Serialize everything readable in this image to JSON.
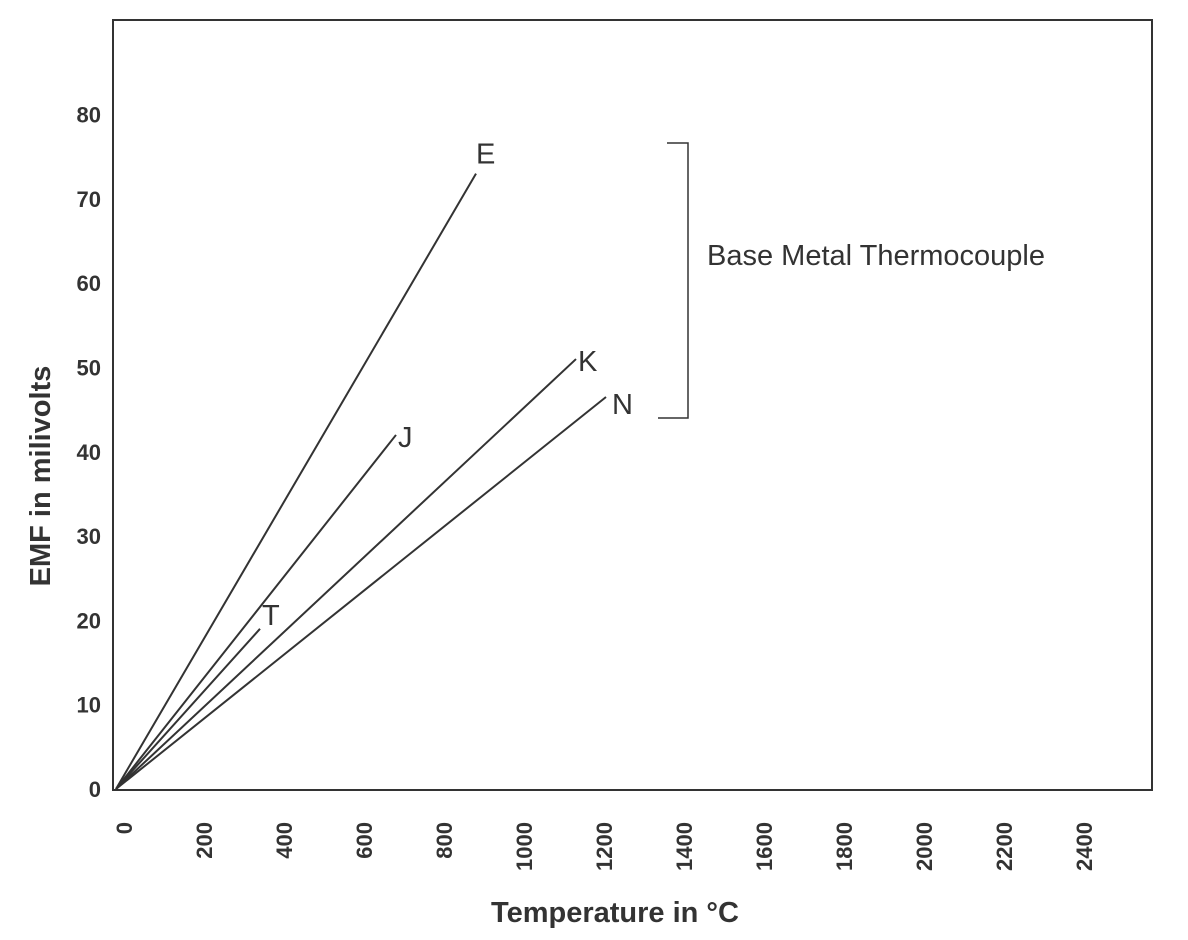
{
  "chart_data": {
    "type": "line",
    "title": "",
    "xlabel": "Temperature in °C",
    "ylabel": "EMF in milivolts",
    "xlim": [
      0,
      2600
    ],
    "ylim": [
      0,
      90
    ],
    "x_ticks": [
      "0",
      "200",
      "400",
      "600",
      "800",
      "1000",
      "1200",
      "1400",
      "1600",
      "1800",
      "2000",
      "2200",
      "2400"
    ],
    "y_ticks": [
      "0",
      "10",
      "20",
      "30",
      "40",
      "50",
      "60",
      "70",
      "80"
    ],
    "grid": false,
    "series": [
      {
        "name": "E",
        "x": [
          0,
          900
        ],
        "y": [
          0,
          73
        ]
      },
      {
        "name": "J",
        "x": [
          0,
          700
        ],
        "y": [
          0,
          42
        ]
      },
      {
        "name": "T",
        "x": [
          0,
          360
        ],
        "y": [
          0,
          19
        ]
      },
      {
        "name": "K",
        "x": [
          0,
          1150
        ],
        "y": [
          0,
          51
        ]
      },
      {
        "name": "N",
        "x": [
          0,
          1225
        ],
        "y": [
          0,
          46.5
        ]
      }
    ],
    "annotations": [
      {
        "text": "Base Metal Thermocouple",
        "brackets": [
          "E",
          "J",
          "T",
          "K",
          "N"
        ]
      }
    ],
    "line_color": "#333333"
  }
}
